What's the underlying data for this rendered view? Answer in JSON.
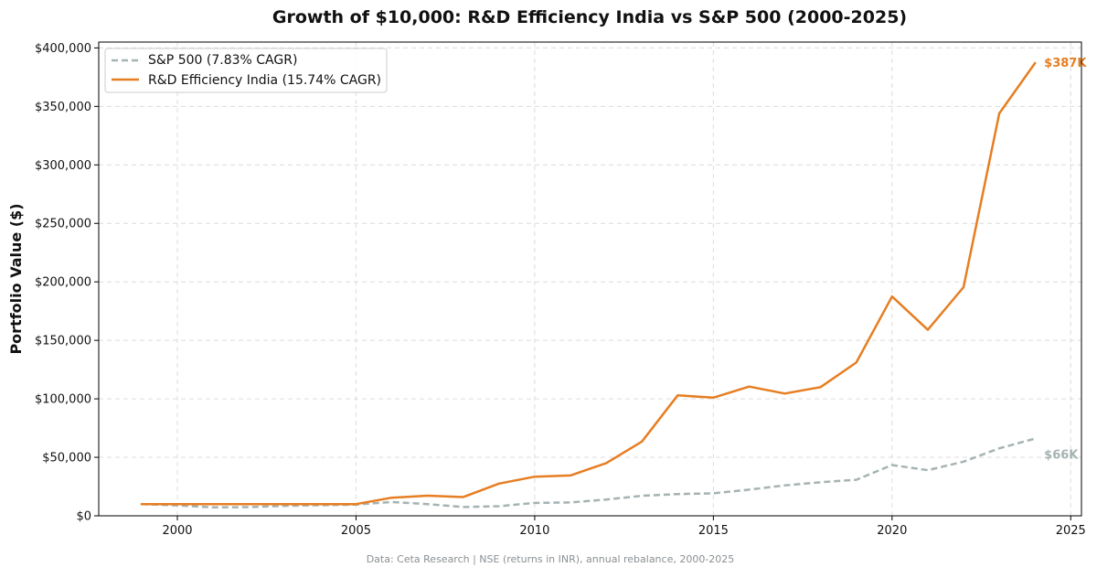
{
  "colors": {
    "sp500": "#a6b3b3",
    "india": "#e67e22",
    "footer": "#8a8f93"
  },
  "chart_data": {
    "type": "line",
    "title": "Growth of $10,000: R&D Efficiency India vs S&P 500 (2000-2025)",
    "xlabel": "",
    "ylabel": "Portfolio Value ($)",
    "xlim": [
      1997.8,
      2025.3
    ],
    "ylim": [
      0,
      405000
    ],
    "x_ticks": [
      2000,
      2005,
      2010,
      2015,
      2020,
      2025
    ],
    "y_ticks": [
      {
        "value": 0,
        "label": "$0"
      },
      {
        "value": 50000,
        "label": "$50,000"
      },
      {
        "value": 100000,
        "label": "$100,000"
      },
      {
        "value": 150000,
        "label": "$150,000"
      },
      {
        "value": 200000,
        "label": "$200,000"
      },
      {
        "value": 250000,
        "label": "$250,000"
      },
      {
        "value": 300000,
        "label": "$300,000"
      },
      {
        "value": 350000,
        "label": "$350,000"
      },
      {
        "value": 400000,
        "label": "$400,000"
      }
    ],
    "grid": true,
    "legend_position": "top-left",
    "footer": "Data: Ceta Research | NSE (returns in INR), annual rebalance, 2000-2025",
    "series": [
      {
        "name": "S&P 500 (7.83% CAGR)",
        "style": "dashed",
        "color_key": "sp500",
        "end_label": "$66K",
        "x": [
          1999,
          2000,
          2001,
          2002,
          2003,
          2004,
          2005,
          2006,
          2007,
          2008,
          2009,
          2010,
          2011,
          2012,
          2013,
          2014,
          2015,
          2016,
          2017,
          2018,
          2019,
          2020,
          2021,
          2022,
          2023,
          2024
        ],
        "values": [
          10000,
          8900,
          7200,
          7400,
          8500,
          9100,
          9600,
          11800,
          10000,
          7500,
          8200,
          11000,
          11400,
          13900,
          17100,
          18600,
          19200,
          22400,
          26000,
          28700,
          30800,
          43400,
          39000,
          46300,
          57700,
          66000
        ]
      },
      {
        "name": "R&D Efficiency India (15.74% CAGR)",
        "style": "solid",
        "color_key": "india",
        "end_label": "$387K",
        "x": [
          1999,
          2000,
          2001,
          2002,
          2003,
          2004,
          2005,
          2006,
          2007,
          2008,
          2009,
          2010,
          2011,
          2012,
          2013,
          2014,
          2015,
          2016,
          2017,
          2018,
          2019,
          2020,
          2021,
          2022,
          2023,
          2024
        ],
        "values": [
          10000,
          10000,
          10000,
          10000,
          10000,
          10000,
          10000,
          15500,
          17200,
          16000,
          27500,
          33500,
          34500,
          45000,
          63500,
          103000,
          101000,
          110500,
          104500,
          110000,
          131000,
          187500,
          159000,
          195500,
          344000,
          387000
        ]
      }
    ]
  }
}
